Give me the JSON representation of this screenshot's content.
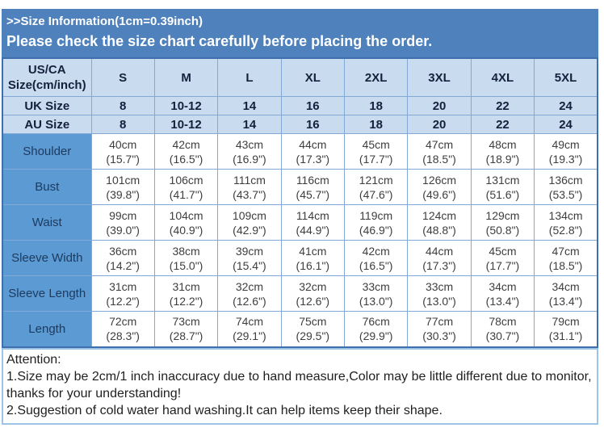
{
  "banner": {
    "line1": ">>Size Information(1cm=0.39inch)",
    "line2": "Please check the size chart carefully before placing the order."
  },
  "table": {
    "corner_line1": "US/CA",
    "corner_line2": "Size(cm/inch)",
    "sizes": [
      "S",
      "M",
      "L",
      "XL",
      "2XL",
      "3XL",
      "4XL",
      "5XL"
    ],
    "uk": {
      "label": "UK Size",
      "values": [
        "8",
        "10-12",
        "14",
        "16",
        "18",
        "20",
        "22",
        "24"
      ]
    },
    "au": {
      "label": "AU Size",
      "values": [
        "8",
        "10-12",
        "14",
        "16",
        "18",
        "20",
        "22",
        "24"
      ]
    },
    "measurements": [
      {
        "label": "Shoulder",
        "cm": [
          "40cm",
          "42cm",
          "43cm",
          "44cm",
          "45cm",
          "47cm",
          "48cm",
          "49cm"
        ],
        "inch": [
          "(15.7\")",
          "(16.5\")",
          "(16.9\")",
          "(17.3\")",
          "(17.7\")",
          "(18.5\")",
          "(18.9\")",
          "(19.3\")"
        ]
      },
      {
        "label": "Bust",
        "cm": [
          "101cm",
          "106cm",
          "111cm",
          "116cm",
          "121cm",
          "126cm",
          "131cm",
          "136cm"
        ],
        "inch": [
          "(39.8\")",
          "(41.7\")",
          "(43.7\")",
          "(45.7\")",
          "(47.6\")",
          "(49.6\")",
          "(51.6\")",
          "(53.5\")"
        ]
      },
      {
        "label": "Waist",
        "cm": [
          "99cm",
          "104cm",
          "109cm",
          "114cm",
          "119cm",
          "124cm",
          "129cm",
          "134cm"
        ],
        "inch": [
          "(39.0\")",
          "(40.9\")",
          "(42.9\")",
          "(44.9\")",
          "(46.9\")",
          "(48.8\")",
          "(50.8\")",
          "(52.8\")"
        ]
      },
      {
        "label": "Sleeve Width",
        "cm": [
          "36cm",
          "38cm",
          "39cm",
          "41cm",
          "42cm",
          "44cm",
          "45cm",
          "47cm"
        ],
        "inch": [
          "(14.2\")",
          "(15.0\")",
          "(15.4\")",
          "(16.1\")",
          "(16.5\")",
          "(17.3\")",
          "(17.7\")",
          "(18.5\")"
        ]
      },
      {
        "label": "Sleeve Length",
        "cm": [
          "31cm",
          "31cm",
          "32cm",
          "32cm",
          "33cm",
          "33cm",
          "34cm",
          "34cm"
        ],
        "inch": [
          "(12.2\")",
          "(12.2\")",
          "(12.6\")",
          "(12.6\")",
          "(13.0\")",
          "(13.0\")",
          "(13.4\")",
          "(13.4\")"
        ]
      },
      {
        "label": "Length",
        "cm": [
          "72cm",
          "73cm",
          "74cm",
          "75cm",
          "76cm",
          "77cm",
          "78cm",
          "79cm"
        ],
        "inch": [
          "(28.3\")",
          "(28.7\")",
          "(29.1\")",
          "(29.5\")",
          "(29.9\")",
          "(30.3\")",
          "(30.7\")",
          "(31.1\")"
        ]
      }
    ]
  },
  "attention": {
    "title": "Attention:",
    "note1": "1.Size may be 2cm/1 inch inaccuracy due to hand measure,Color may be little different due to monitor,thanks for your understanding!",
    "note2": "2.Suggestion of cold water hand washing.It can help items keep their shape."
  },
  "colors": {
    "banner_bg": "#4f81bd",
    "header_row_bg": "#c9dbee",
    "row_label_bg": "#5b9ad3",
    "grid_border": "#84a8d6",
    "outer_border": "#3f6fae",
    "attention_border": "#9dc3e6"
  }
}
